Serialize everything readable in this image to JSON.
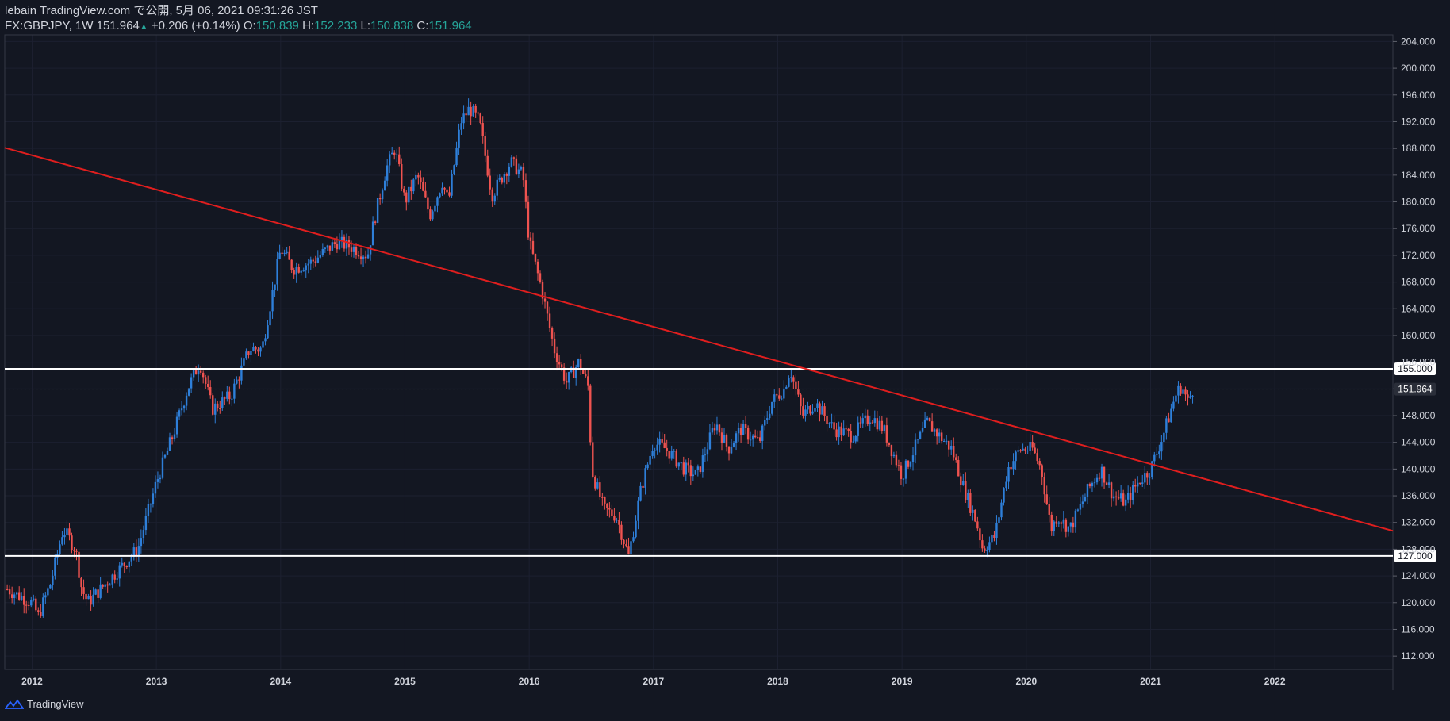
{
  "header": {
    "publish_line": "lebain TradingView.com で公開, 5月 06, 2021 09:31:26 JST",
    "symbol": "FX:GBPJPY, 1W",
    "last": "151.964",
    "up_arrow": "▲",
    "change": "+0.206 (+0.14%)",
    "o_label": "O:",
    "o_val": "150.839",
    "h_label": "H:",
    "h_val": "152.233",
    "l_label": "L:",
    "l_val": "150.838",
    "c_label": "C:",
    "c_val": "151.964"
  },
  "footer": {
    "brand": "TradingView"
  },
  "colors": {
    "background": "#131722",
    "up": "#2e7fd9",
    "down": "#ef5350",
    "trendline": "#e01e1e",
    "hline": "#ffffff",
    "grid": "#1c2030",
    "text": "#d1d4dc"
  },
  "chart_data": {
    "type": "candlestick",
    "symbol": "FX:GBPJPY",
    "interval": "1W",
    "ylim": [
      110,
      205
    ],
    "y_ticks": [
      112,
      116,
      120,
      124,
      128,
      132,
      136,
      140,
      144,
      148,
      152,
      156,
      160,
      164,
      168,
      172,
      176,
      180,
      184,
      188,
      192,
      196,
      200,
      204
    ],
    "x_ticks": [
      "2012",
      "2013",
      "2014",
      "2015",
      "2016",
      "2017",
      "2018",
      "2019",
      "2020",
      "2021",
      "2022"
    ],
    "horizontal_lines": [
      {
        "label": "155.000",
        "price": 155.0
      },
      {
        "label": "127.000",
        "price": 127.0
      }
    ],
    "last_price_label": "151.964",
    "last_price": 151.964,
    "trendline": {
      "start": [
        "2011.8",
        188.0
      ],
      "end": [
        "2022.9",
        131.0
      ]
    },
    "price_path": [
      [
        "2011.8",
        122.0
      ],
      [
        "2012.0",
        120.0
      ],
      [
        "2012.05",
        118.0
      ],
      [
        "2012.15",
        123.0
      ],
      [
        "2012.25",
        131.0
      ],
      [
        "2012.35",
        128.0
      ],
      [
        "2012.4",
        122.0
      ],
      [
        "2012.45",
        120.0
      ],
      [
        "2012.6",
        123.0
      ],
      [
        "2012.75",
        126.0
      ],
      [
        "2012.85",
        128.0
      ],
      [
        "2013.0",
        138.0
      ],
      [
        "2013.15",
        146.0
      ],
      [
        "2013.25",
        152.0
      ],
      [
        "2013.35",
        156.0
      ],
      [
        "2013.45",
        149.0
      ],
      [
        "2013.6",
        151.0
      ],
      [
        "2013.75",
        158.0
      ],
      [
        "2013.85",
        158.0
      ],
      [
        "2013.95",
        168.0
      ],
      [
        "2014.0",
        173.0
      ],
      [
        "2014.1",
        170.0
      ],
      [
        "2014.25",
        171.0
      ],
      [
        "2014.45",
        174.0
      ],
      [
        "2014.6",
        173.0
      ],
      [
        "2014.7",
        172.0
      ],
      [
        "2014.75",
        177.0
      ],
      [
        "2014.85",
        185.0
      ],
      [
        "2014.92",
        188.0
      ],
      [
        "2015.0",
        180.0
      ],
      [
        "2015.1",
        184.0
      ],
      [
        "2015.2",
        178.0
      ],
      [
        "2015.3",
        183.0
      ],
      [
        "2015.35",
        180.0
      ],
      [
        "2015.45",
        192.0
      ],
      [
        "2015.52",
        194.0
      ],
      [
        "2015.6",
        192.0
      ],
      [
        "2015.7",
        181.0
      ],
      [
        "2015.85",
        186.0
      ],
      [
        "2015.95",
        184.0
      ],
      [
        "2016.0",
        174.0
      ],
      [
        "2016.1",
        167.0
      ],
      [
        "2016.2",
        158.0
      ],
      [
        "2016.3",
        153.0
      ],
      [
        "2016.4",
        156.0
      ],
      [
        "2016.48",
        152.0
      ],
      [
        "2016.5",
        140.0
      ],
      [
        "2016.6",
        134.0
      ],
      [
        "2016.7",
        133.0
      ],
      [
        "2016.8",
        127.0
      ],
      [
        "2016.9",
        137.0
      ],
      [
        "2017.0",
        144.0
      ],
      [
        "2017.1",
        143.0
      ],
      [
        "2017.25",
        140.0
      ],
      [
        "2017.35",
        139.0
      ],
      [
        "2017.5",
        147.0
      ],
      [
        "2017.6",
        143.0
      ],
      [
        "2017.7",
        146.0
      ],
      [
        "2017.85",
        144.0
      ],
      [
        "2017.95",
        150.0
      ],
      [
        "2018.05",
        152.0
      ],
      [
        "2018.1",
        155.0
      ],
      [
        "2018.2",
        148.0
      ],
      [
        "2018.3",
        150.0
      ],
      [
        "2018.45",
        146.0
      ],
      [
        "2018.6",
        145.0
      ],
      [
        "2018.75",
        148.0
      ],
      [
        "2018.85",
        146.0
      ],
      [
        "2019.0",
        139.0
      ],
      [
        "2019.1",
        143.0
      ],
      [
        "2019.2",
        147.0
      ],
      [
        "2019.3",
        145.0
      ],
      [
        "2019.4",
        143.0
      ],
      [
        "2019.5",
        137.0
      ],
      [
        "2019.6",
        132.0
      ],
      [
        "2019.65",
        128.0
      ],
      [
        "2019.75",
        130.0
      ],
      [
        "2019.85",
        140.0
      ],
      [
        "2019.95",
        143.0
      ],
      [
        "2020.05",
        143.0
      ],
      [
        "2020.12",
        140.0
      ],
      [
        "2020.2",
        131.0
      ],
      [
        "2020.25",
        133.0
      ],
      [
        "2020.35",
        131.0
      ],
      [
        "2020.5",
        137.0
      ],
      [
        "2020.6",
        140.0
      ],
      [
        "2020.7",
        136.0
      ],
      [
        "2020.8",
        135.0
      ],
      [
        "2020.9",
        138.0
      ],
      [
        "2021.0",
        140.0
      ],
      [
        "2021.1",
        145.0
      ],
      [
        "2021.2",
        151.0
      ],
      [
        "2021.25",
        152.5
      ],
      [
        "2021.3",
        150.0
      ],
      [
        "2021.34",
        151.964
      ]
    ]
  }
}
